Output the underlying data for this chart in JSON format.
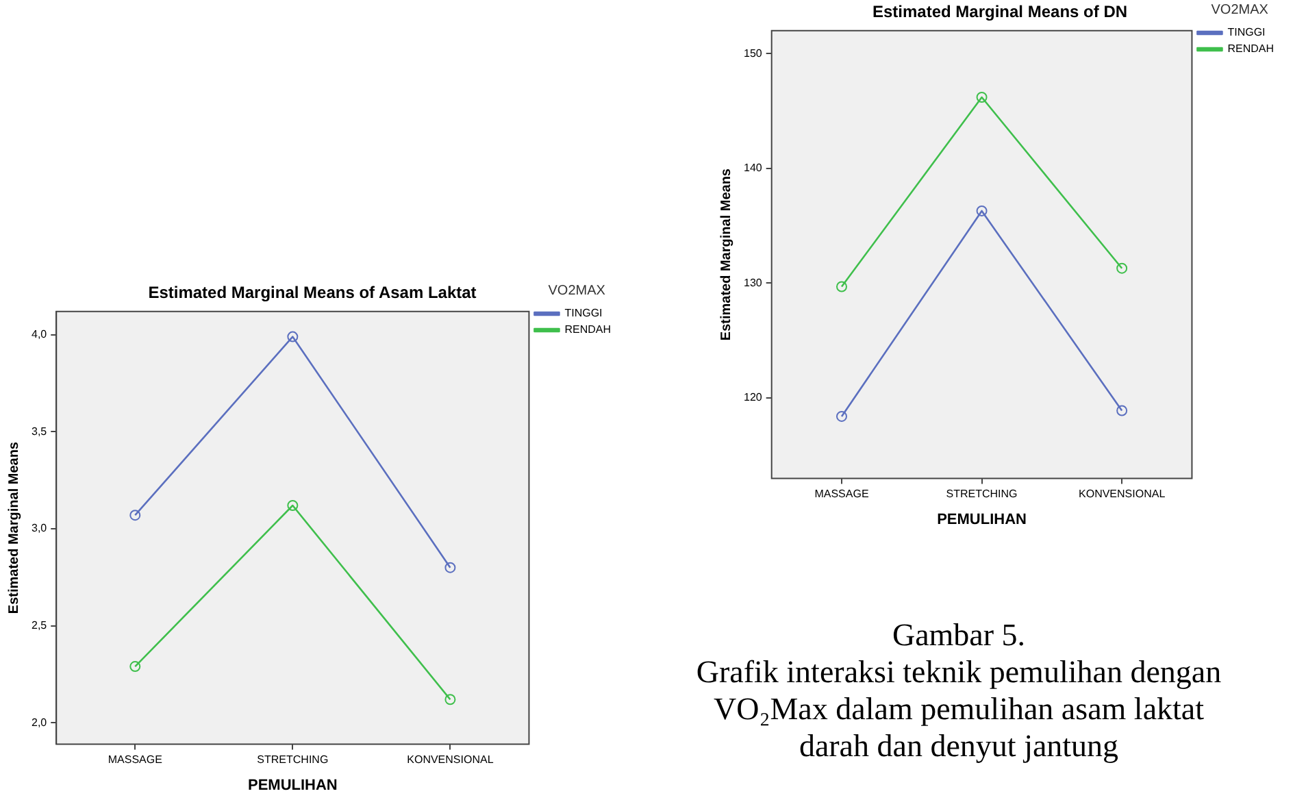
{
  "chart_data": [
    {
      "type": "line",
      "title": "Estimated Marginal Means of Asam Laktat",
      "xlabel": "PEMULIHAN",
      "ylabel": "Estimated Marginal Means",
      "legend_title": "VO2MAX",
      "categories": [
        "MASSAGE",
        "STRETCHING",
        "KONVENSIONAL"
      ],
      "series": [
        {
          "name": "TINGGI",
          "color": "#5b6fbf",
          "values": [
            3.07,
            3.99,
            2.8
          ]
        },
        {
          "name": "RENDAH",
          "color": "#3fbf4c",
          "values": [
            2.29,
            3.12,
            2.12
          ]
        }
      ],
      "ylim": [
        1.89,
        4.12
      ],
      "yticks": [
        {
          "value": 2,
          "label": "2,0"
        },
        {
          "value": 2.5,
          "label": "2,5"
        },
        {
          "value": 3,
          "label": "3,0"
        },
        {
          "value": 3.5,
          "label": "3,5"
        },
        {
          "value": 4,
          "label": "4,0"
        }
      ],
      "legend": "right",
      "marker": "circle",
      "line_style": "solid"
    },
    {
      "type": "line",
      "title": "Estimated Marginal Means of DN",
      "xlabel": "PEMULIHAN",
      "ylabel": "Estimated Marginal Means",
      "legend_title": "VO2MAX",
      "categories": [
        "MASSAGE",
        "STRETCHING",
        "KONVENSIONAL"
      ],
      "series": [
        {
          "name": "TINGGI",
          "color": "#5b6fbf",
          "values": [
            118.4,
            136.3,
            118.9
          ]
        },
        {
          "name": "RENDAH",
          "color": "#3fbf4c",
          "values": [
            129.7,
            146.2,
            131.3
          ]
        }
      ],
      "ylim": [
        113,
        152
      ],
      "yticks": [
        120,
        130,
        140,
        150
      ],
      "legend": "right",
      "marker": "circle",
      "line_style": "solid",
      "annotations": [
        "Gambar 5.",
        "Grafik interaksi teknik pemulihan dengan VO₂Max dalam pemulihan asam laktat darah dan denyut jantung"
      ]
    }
  ]
}
